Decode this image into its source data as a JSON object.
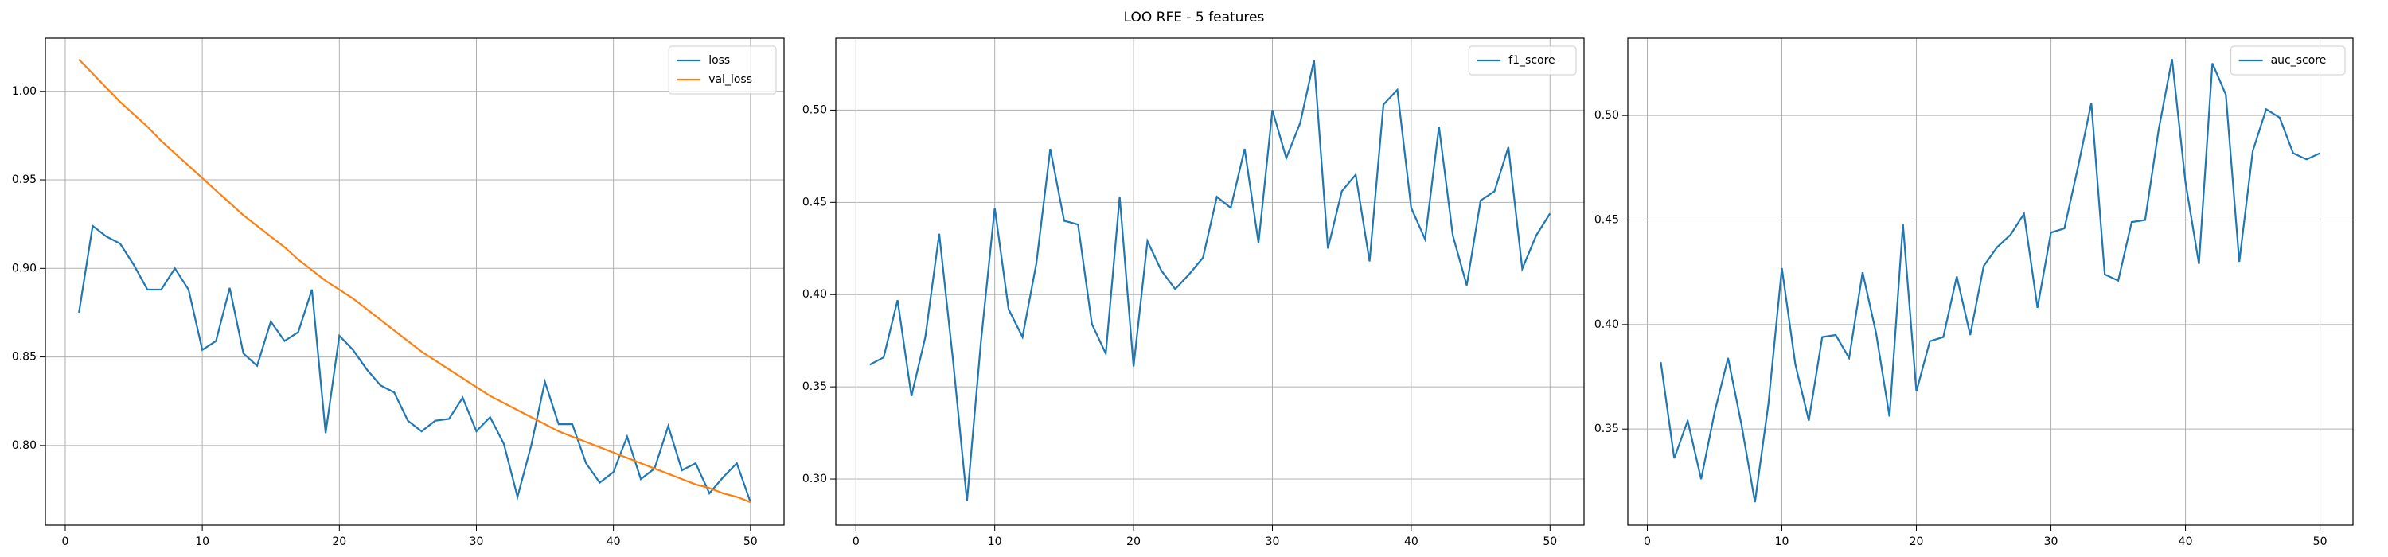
{
  "title": "LOO RFE - 5 features",
  "chart_data": [
    {
      "type": "line",
      "x": [
        1,
        2,
        3,
        4,
        5,
        6,
        7,
        8,
        9,
        10,
        11,
        12,
        13,
        14,
        15,
        16,
        17,
        18,
        19,
        20,
        21,
        22,
        23,
        24,
        25,
        26,
        27,
        28,
        29,
        30,
        31,
        32,
        33,
        34,
        35,
        36,
        37,
        38,
        39,
        40,
        41,
        42,
        43,
        44,
        45,
        46,
        47,
        48,
        49,
        50
      ],
      "series": [
        {
          "name": "loss",
          "color": "#1f77b4",
          "values": [
            0.875,
            0.924,
            0.918,
            0.914,
            0.902,
            0.888,
            0.888,
            0.9,
            0.888,
            0.854,
            0.859,
            0.889,
            0.852,
            0.845,
            0.87,
            0.859,
            0.864,
            0.888,
            0.807,
            0.862,
            0.854,
            0.843,
            0.834,
            0.83,
            0.814,
            0.808,
            0.814,
            0.815,
            0.827,
            0.808,
            0.816,
            0.801,
            0.771,
            0.8,
            0.836,
            0.812,
            0.812,
            0.79,
            0.779,
            0.785,
            0.805,
            0.781,
            0.787,
            0.811,
            0.786,
            0.79,
            0.773,
            0.782,
            0.79,
            0.768
          ]
        },
        {
          "name": "val_loss",
          "color": "#ff7f0e",
          "values": [
            1.018,
            1.01,
            1.002,
            0.994,
            0.987,
            0.98,
            0.972,
            0.965,
            0.958,
            0.951,
            0.944,
            0.937,
            0.93,
            0.924,
            0.918,
            0.912,
            0.905,
            0.899,
            0.893,
            0.888,
            0.883,
            0.877,
            0.871,
            0.865,
            0.859,
            0.853,
            0.848,
            0.843,
            0.838,
            0.833,
            0.828,
            0.824,
            0.82,
            0.816,
            0.812,
            0.808,
            0.805,
            0.802,
            0.799,
            0.796,
            0.793,
            0.79,
            0.787,
            0.784,
            0.781,
            0.778,
            0.776,
            0.773,
            0.771,
            0.768
          ]
        }
      ],
      "xlim": [
        -1.45,
        52.45
      ],
      "xticks": [
        0,
        10,
        20,
        30,
        40,
        50
      ],
      "ylim": [
        0.755,
        1.03
      ],
      "yticks": [
        {
          "value": 0.8,
          "label": "0.80"
        },
        0.85,
        {
          "value": 0.9,
          "label": "0.90"
        },
        0.95,
        {
          "value": 1,
          "label": "1.00"
        }
      ],
      "grid": true,
      "legend": "upper right"
    },
    {
      "type": "line",
      "x": [
        1,
        2,
        3,
        4,
        5,
        6,
        7,
        8,
        9,
        10,
        11,
        12,
        13,
        14,
        15,
        16,
        17,
        18,
        19,
        20,
        21,
        22,
        23,
        24,
        25,
        26,
        27,
        28,
        29,
        30,
        31,
        32,
        33,
        34,
        35,
        36,
        37,
        38,
        39,
        40,
        41,
        42,
        43,
        44,
        45,
        46,
        47,
        48,
        49,
        50
      ],
      "series": [
        {
          "name": "f1_score",
          "color": "#1f77b4",
          "values": [
            0.362,
            0.366,
            0.397,
            0.345,
            0.377,
            0.433,
            0.364,
            0.288,
            0.374,
            0.447,
            0.392,
            0.377,
            0.417,
            0.479,
            0.44,
            0.438,
            0.384,
            0.368,
            0.453,
            0.361,
            0.429,
            0.413,
            0.403,
            0.411,
            0.42,
            0.453,
            0.447,
            0.479,
            0.428,
            0.5,
            0.474,
            0.493,
            0.527,
            0.425,
            0.456,
            0.465,
            0.418,
            0.503,
            0.511,
            0.447,
            0.43,
            0.491,
            0.432,
            0.405,
            0.451,
            0.456,
            0.48,
            0.414,
            0.432,
            0.444
          ]
        }
      ],
      "xlim": [
        -1.45,
        52.45
      ],
      "xticks": [
        0,
        10,
        20,
        30,
        40,
        50
      ],
      "ylim": [
        0.275,
        0.539
      ],
      "yticks": [
        {
          "value": 0.3,
          "label": "0.30"
        },
        0.35,
        {
          "value": 0.4,
          "label": "0.40"
        },
        0.45,
        {
          "value": 0.5,
          "label": "0.50"
        }
      ],
      "grid": true,
      "legend": "upper right"
    },
    {
      "type": "line",
      "x": [
        1,
        2,
        3,
        4,
        5,
        6,
        7,
        8,
        9,
        10,
        11,
        12,
        13,
        14,
        15,
        16,
        17,
        18,
        19,
        20,
        21,
        22,
        23,
        24,
        25,
        26,
        27,
        28,
        29,
        30,
        31,
        32,
        33,
        34,
        35,
        36,
        37,
        38,
        39,
        40,
        41,
        42,
        43,
        44,
        45,
        46,
        47,
        48,
        49,
        50
      ],
      "series": [
        {
          "name": "auc_score",
          "color": "#1f77b4",
          "values": [
            0.382,
            0.336,
            0.354,
            0.326,
            0.358,
            0.384,
            0.352,
            0.315,
            0.362,
            0.427,
            0.381,
            0.354,
            0.394,
            0.395,
            0.384,
            0.425,
            0.396,
            0.356,
            0.448,
            0.368,
            0.392,
            0.394,
            0.423,
            0.395,
            0.428,
            0.437,
            0.443,
            0.453,
            0.408,
            0.444,
            0.446,
            0.475,
            0.506,
            0.424,
            0.421,
            0.449,
            0.45,
            0.493,
            0.527,
            0.468,
            0.429,
            0.525,
            0.51,
            0.43,
            0.483,
            0.503,
            0.499,
            0.482,
            0.479,
            0.482
          ]
        }
      ],
      "xlim": [
        -1.45,
        52.45
      ],
      "xticks": [
        0,
        10,
        20,
        30,
        40,
        50
      ],
      "ylim": [
        0.304,
        0.537
      ],
      "yticks": [
        0.35,
        {
          "value": 0.4,
          "label": "0.40"
        },
        0.45,
        {
          "value": 0.5,
          "label": "0.50"
        }
      ],
      "grid": true,
      "legend": "upper right"
    }
  ]
}
